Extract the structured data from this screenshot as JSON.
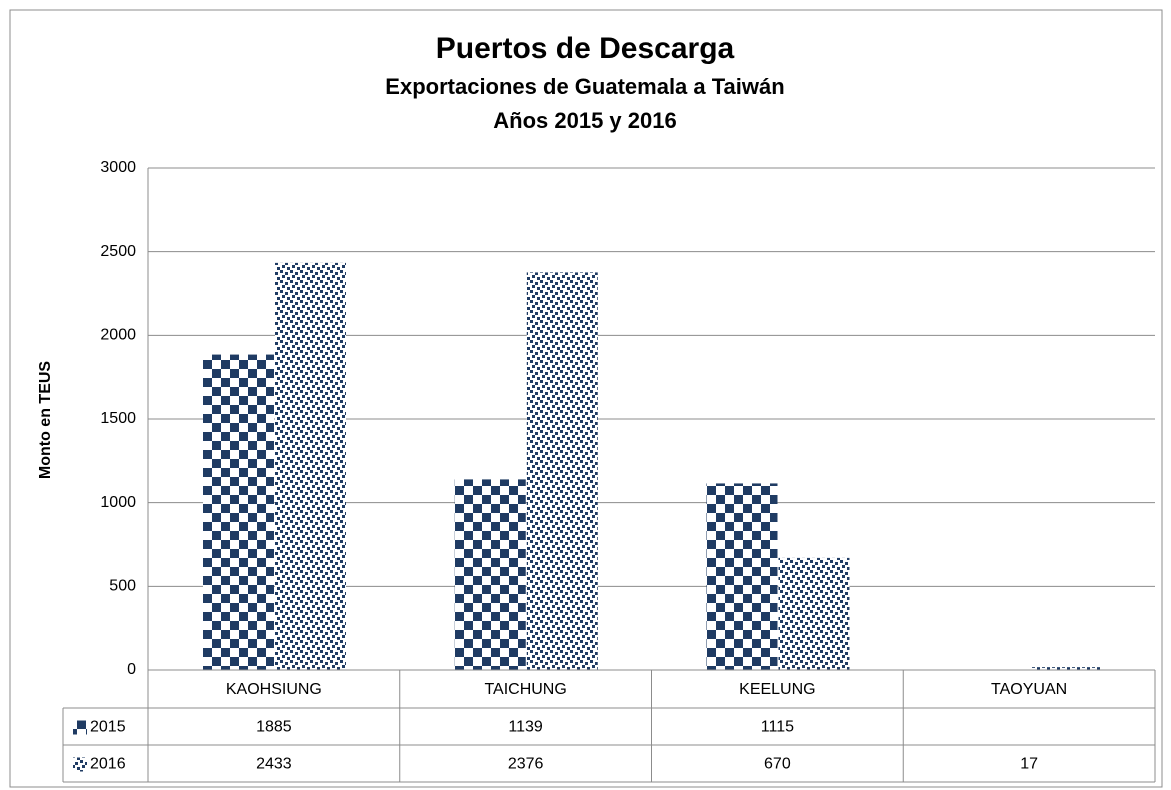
{
  "chart_data": {
    "type": "bar",
    "title": "Puertos de Descarga",
    "subtitle": [
      "Exportaciones de Guatemala a Taiwán",
      "Años 2015 y 2016"
    ],
    "y_label": "Monto en TEUS",
    "categories": [
      "KAOHSIUNG",
      "TAICHUNG",
      "KEELUNG",
      "TAOYUAN"
    ],
    "series": [
      {
        "name": "2015",
        "color": "#1f3b63",
        "pattern": "checker",
        "values": [
          1885,
          1139,
          1115,
          null
        ]
      },
      {
        "name": "2016",
        "color": "#1f3b63",
        "pattern": "dots",
        "values": [
          2433,
          2376,
          670,
          17
        ]
      }
    ],
    "ylim": [
      0,
      3000
    ],
    "yticks": [
      0,
      500,
      1000,
      1500,
      2000,
      2500,
      3000
    ],
    "grid": true,
    "data_table": true
  }
}
